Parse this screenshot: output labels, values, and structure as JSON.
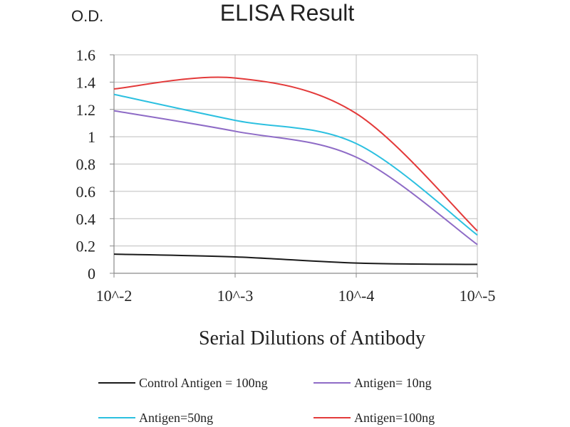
{
  "chart_data": {
    "type": "line",
    "title": "ELISA Result",
    "ylabel": "O.D.",
    "xlabel": "Serial Dilutions of Antibody",
    "categories": [
      "10^-2",
      "10^-3",
      "10^-4",
      "10^-5"
    ],
    "ylim": [
      0,
      1.6
    ],
    "yticks": [
      "0",
      "0.2",
      "0.4",
      "0.6",
      "0.8",
      "1",
      "1.2",
      "1.4",
      "1.6"
    ],
    "grid": true,
    "legend_position": "bottom",
    "smooth": true,
    "series": [
      {
        "name": "Control Antigen = 100ng",
        "color": "#1a1a1a",
        "values": [
          0.14,
          0.12,
          0.075,
          0.065
        ]
      },
      {
        "name": "Antigen= 10ng",
        "color": "#8e6bc6",
        "values": [
          1.19,
          1.04,
          0.85,
          0.21
        ]
      },
      {
        "name": "Antigen=50ng",
        "color": "#2cc0e0",
        "values": [
          1.31,
          1.12,
          0.95,
          0.28
        ]
      },
      {
        "name": "Antigen=100ng",
        "color": "#e33a3a",
        "values": [
          1.35,
          1.43,
          1.17,
          0.31
        ]
      }
    ]
  }
}
